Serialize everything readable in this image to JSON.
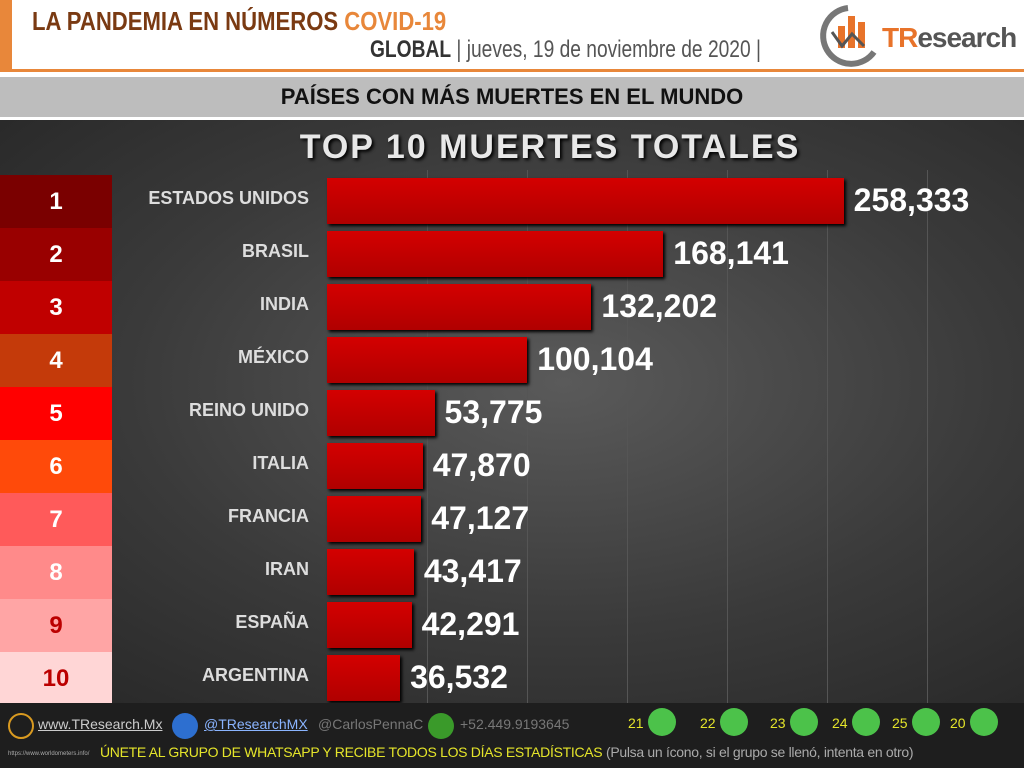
{
  "header": {
    "title": "LA PANDEMIA EN NÚMEROS",
    "title_accent": "COVID-19",
    "region": "GLOBAL",
    "date": "jueves, 19 de noviembre de 2020",
    "logo": "TResearch"
  },
  "band_title": "PAÍSES CON MÁS MUERTES EN EL MUNDO",
  "colors": {
    "bar": "#c00000",
    "accent": "#e8873a"
  },
  "chart_data": {
    "type": "bar",
    "orientation": "horizontal",
    "title": "TOP 10 MUERTES TOTALES",
    "categories": [
      "ESTADOS UNIDOS",
      "BRASIL",
      "INDIA",
      "MÉXICO",
      "REINO UNIDO",
      "ITALIA",
      "FRANCIA",
      "IRAN",
      "ESPAÑA",
      "ARGENTINA"
    ],
    "values": [
      258333,
      168141,
      132202,
      100104,
      53775,
      47870,
      47127,
      43417,
      42291,
      36532
    ],
    "labels": [
      "258,333",
      "168,141",
      "132,202",
      "100,104",
      "53,775",
      "47,870",
      "47,127",
      "43,417",
      "42,291",
      "36,532"
    ],
    "ranks": [
      "1",
      "2",
      "3",
      "4",
      "5",
      "6",
      "7",
      "8",
      "9",
      "10"
    ],
    "rank_colors": [
      "#7a0000",
      "#990000",
      "#c00000",
      "#c43a0a",
      "#ff0000",
      "#ff4a0a",
      "#ff5a5a",
      "#ff8a8a",
      "#ffa5a5",
      "#ffd6d6"
    ],
    "xlim": [
      0,
      300000
    ],
    "grid": true
  },
  "footer": {
    "website": "www.TResearch.Mx",
    "twitter": "@TResearchMX",
    "handle": "@CarlosPennaC",
    "phone": "+52.449.9193645",
    "source": "https://www.worldometers.info/",
    "groups": [
      "21",
      "22",
      "23",
      "24",
      "25",
      "20"
    ],
    "cta": "ÚNETE AL GRUPO DE WHATSAPP Y RECIBE TODOS LOS DÍAS ESTADÍSTICAS",
    "cta_note": "(Pulsa un ícono, si el grupo se llenó, intenta en otro)"
  }
}
